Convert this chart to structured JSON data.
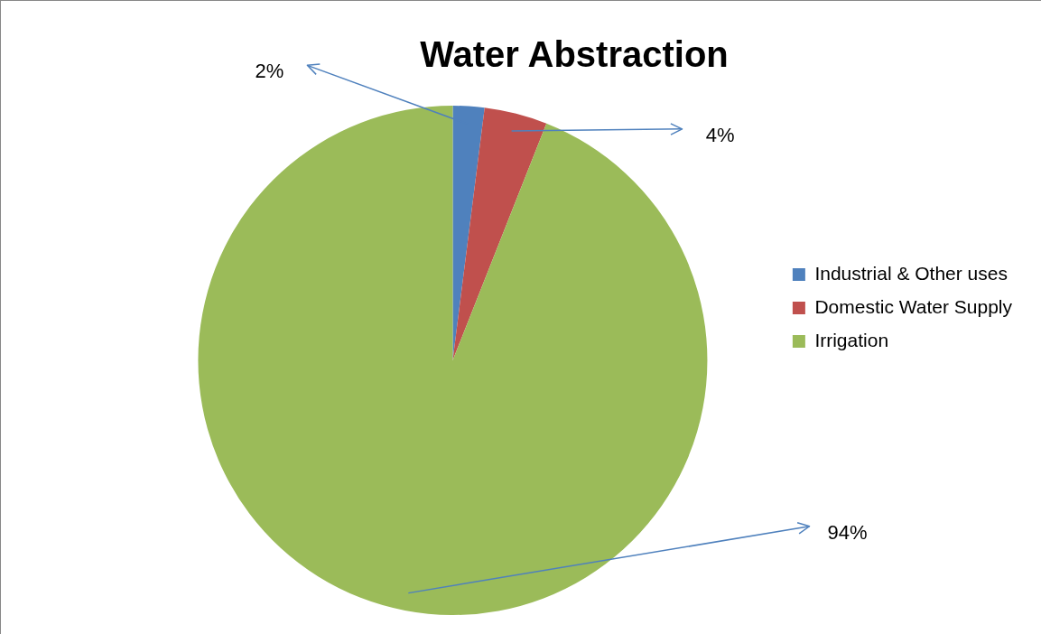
{
  "chart_data": {
    "type": "pie",
    "title": "Water Abstraction",
    "categories": [
      "Industrial & Other uses",
      "Domestic Water Supply",
      "Irrigation"
    ],
    "values": [
      2,
      4,
      94
    ],
    "colors": [
      "#4f81bd",
      "#c0504d",
      "#9bbb59"
    ],
    "value_labels": [
      "2%",
      "4%",
      "94%"
    ],
    "legend": "right"
  }
}
